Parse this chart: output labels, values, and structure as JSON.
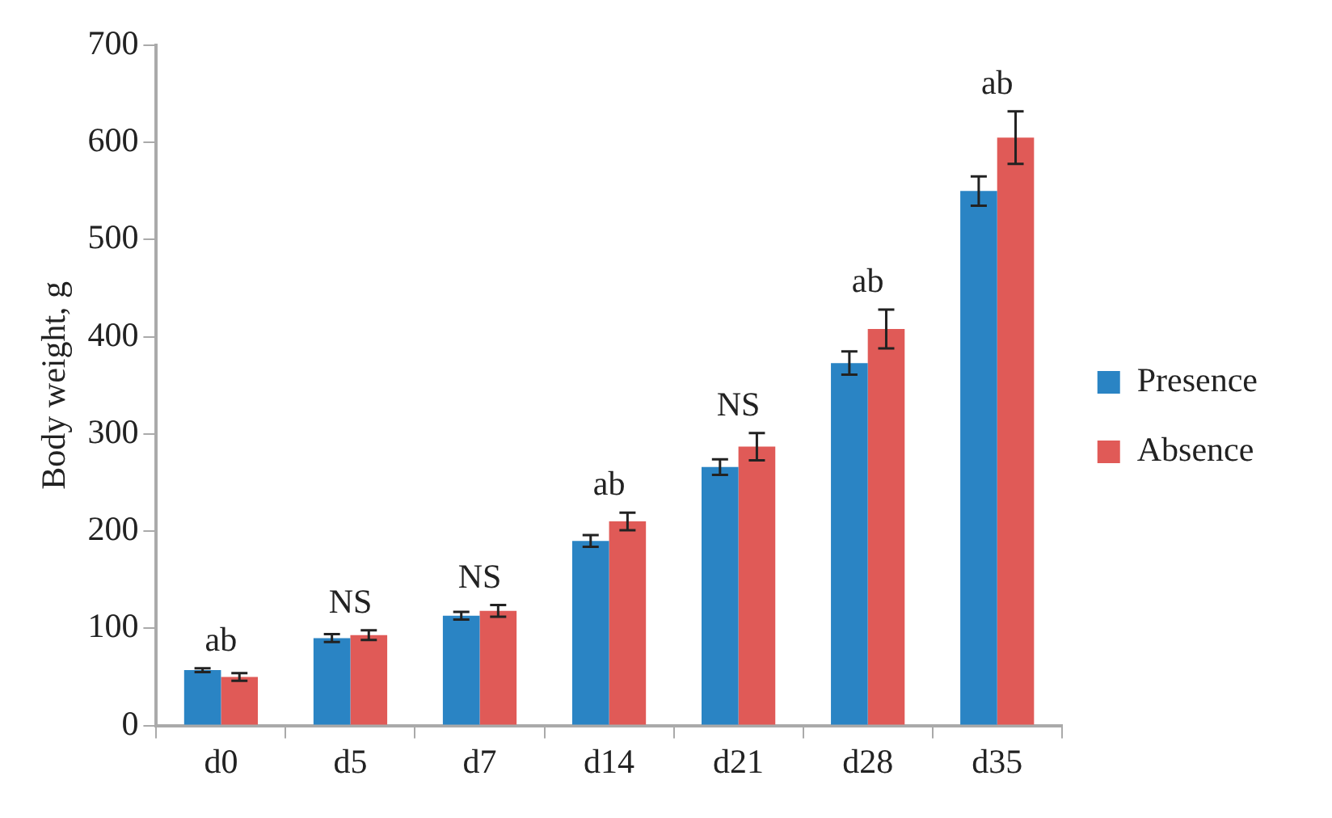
{
  "chart_data": {
    "type": "bar",
    "ylabel": "Body weight, g",
    "categories": [
      "d0",
      "d5",
      "d7",
      "d14",
      "d21",
      "d28",
      "d35"
    ],
    "series": [
      {
        "name": "Presence",
        "color": "#2a84c4",
        "values": [
          57,
          90,
          113,
          190,
          266,
          373,
          550
        ],
        "errors": [
          2,
          4,
          4,
          6,
          8,
          12,
          15
        ]
      },
      {
        "name": "Absence",
        "color": "#e05a57",
        "values": [
          50,
          93,
          118,
          210,
          287,
          408,
          605
        ],
        "errors": [
          4,
          5,
          6,
          9,
          14,
          20,
          27
        ]
      }
    ],
    "ylim": [
      0,
      700
    ],
    "yticks": [
      0,
      100,
      200,
      300,
      400,
      500,
      600,
      700
    ],
    "grid": false,
    "legend": "right",
    "annotations": [
      "ab",
      "NS",
      "NS",
      "ab",
      "NS",
      "ab",
      "ab"
    ]
  }
}
